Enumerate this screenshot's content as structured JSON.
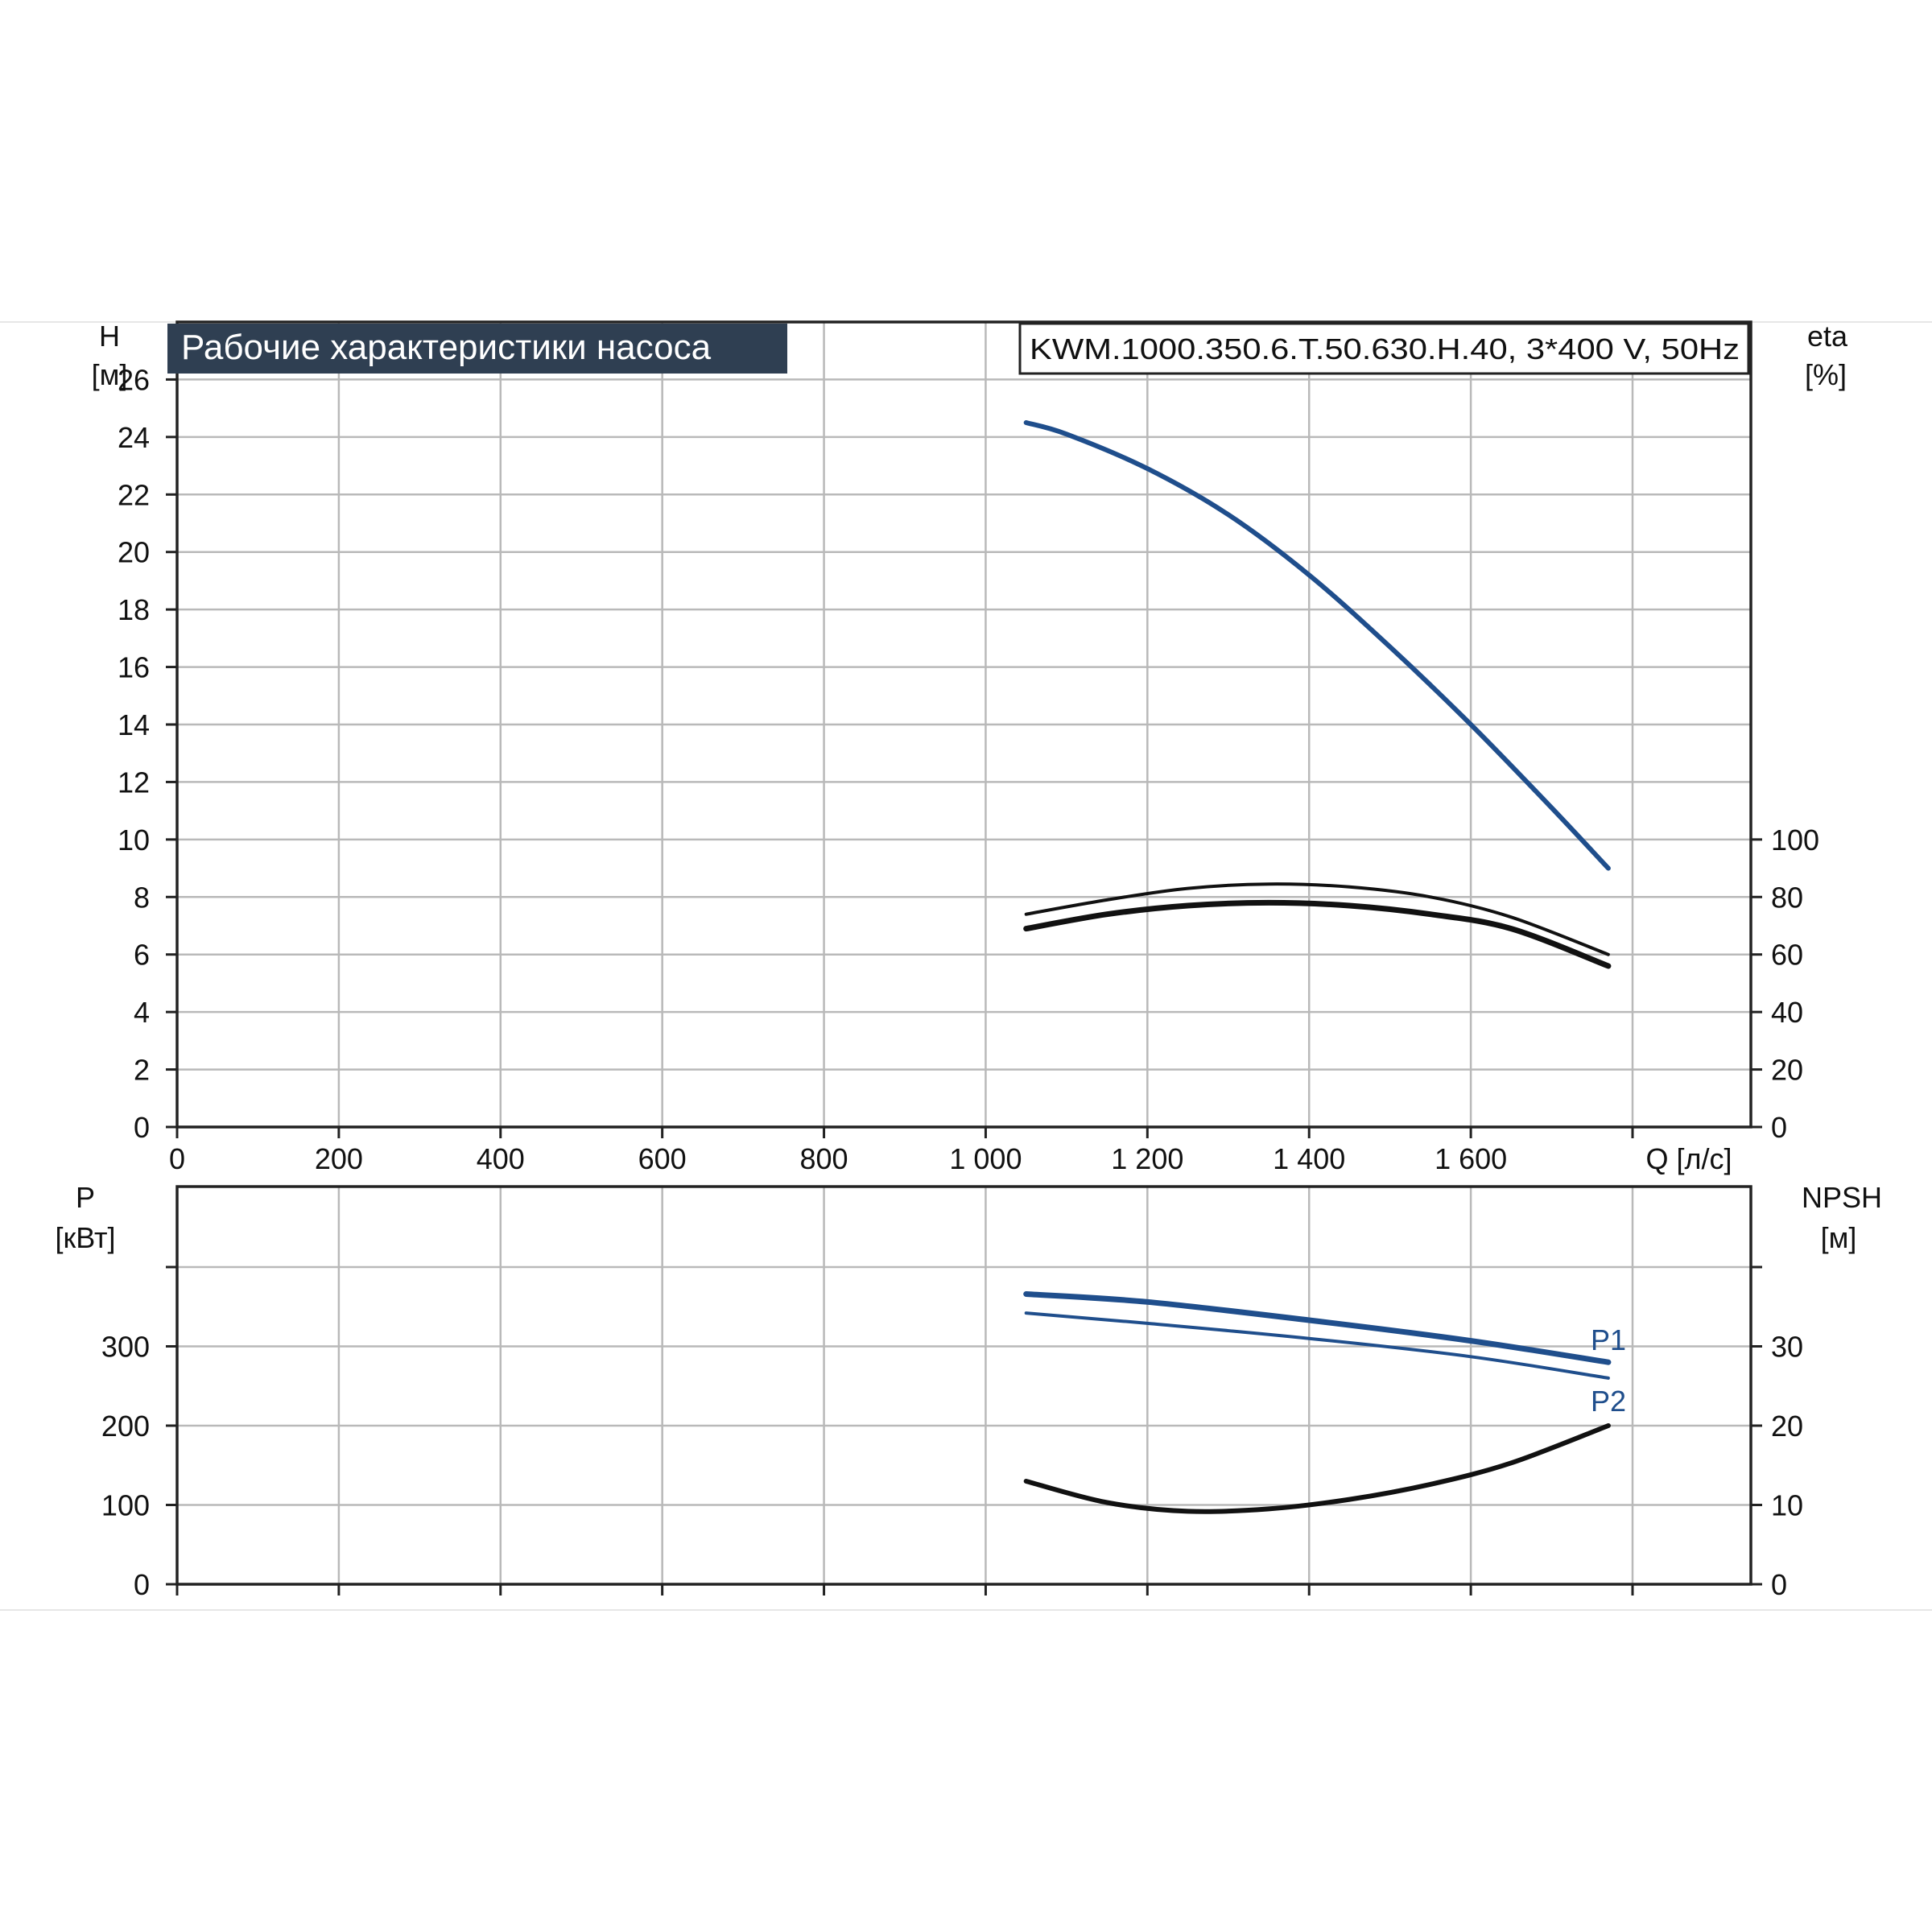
{
  "chart_data": [
    {
      "type": "line",
      "title": "Рабочие характеристики насоса",
      "model_label": "KWM.1000.350.6.T.50.630.H.40, 3*400 V, 50Hz",
      "xlabel": "Q [л/с]",
      "xlim": [
        0,
        1950
      ],
      "x_ticks": [
        "0",
        "200",
        "400",
        "600",
        "800",
        "1 000",
        "1 200",
        "1 400",
        "1 600"
      ],
      "x_tick_values": [
        0,
        200,
        400,
        600,
        800,
        1000,
        1200,
        1400,
        1600
      ],
      "y_left": {
        "label": "H",
        "unit": "[м]",
        "ylim": [
          0,
          28
        ],
        "ticks": [
          0,
          2,
          4,
          6,
          8,
          10,
          12,
          14,
          16,
          18,
          20,
          22,
          24,
          26
        ]
      },
      "y_right": {
        "label": "eta",
        "unit": "[%]",
        "ylim": [
          0,
          100
        ],
        "ticks": [
          0,
          20,
          40,
          60,
          80,
          100
        ]
      },
      "series": [
        {
          "axis": "left",
          "color": "#1f4e8c",
          "x": [
            1050,
            1100,
            1200,
            1300,
            1400,
            1500,
            1600,
            1700,
            1770
          ],
          "y": [
            24.5,
            24.1,
            22.9,
            21.3,
            19.2,
            16.7,
            14.0,
            11.1,
            9.0
          ]
        },
        {
          "axis": "right",
          "color": "#111111",
          "x": [
            1050,
            1150,
            1250,
            1350,
            1450,
            1550,
            1650,
            1770
          ],
          "y": [
            74,
            79,
            83,
            84.5,
            83.5,
            80,
            73,
            60
          ]
        },
        {
          "axis": "right",
          "color": "#111111",
          "x": [
            1050,
            1150,
            1250,
            1350,
            1450,
            1550,
            1650,
            1770
          ],
          "y": [
            69,
            74,
            77,
            78,
            77,
            74,
            69,
            56
          ]
        }
      ]
    },
    {
      "type": "line",
      "xlim": [
        0,
        1950
      ],
      "x_ticks": [
        0,
        200,
        400,
        600,
        800,
        1000,
        1200,
        1400,
        1600
      ],
      "y_left": {
        "label": "P",
        "unit": "[кВт]",
        "ylim": [
          0,
          400
        ],
        "ticks": [
          0,
          100,
          200,
          300
        ]
      },
      "y_right": {
        "label": "NPSH",
        "unit": "[м]",
        "ylim": [
          0,
          40
        ],
        "ticks": [
          0,
          10,
          20,
          30
        ]
      },
      "series": [
        {
          "name": "P1",
          "axis": "left",
          "color": "#1f4e8c",
          "x": [
            1050,
            1200,
            1400,
            1600,
            1770
          ],
          "y": [
            366,
            356,
            333,
            307,
            280
          ]
        },
        {
          "name": "P2",
          "axis": "left",
          "color": "#1f4e8c",
          "x": [
            1050,
            1200,
            1400,
            1600,
            1770
          ],
          "y": [
            342,
            329,
            310,
            287,
            260
          ]
        },
        {
          "axis": "right",
          "color": "#111111",
          "x": [
            1050,
            1150,
            1250,
            1350,
            1450,
            1550,
            1650,
            1770
          ],
          "y": [
            13,
            10.3,
            9.2,
            9.5,
            10.7,
            12.6,
            15.3,
            20
          ]
        }
      ]
    }
  ]
}
